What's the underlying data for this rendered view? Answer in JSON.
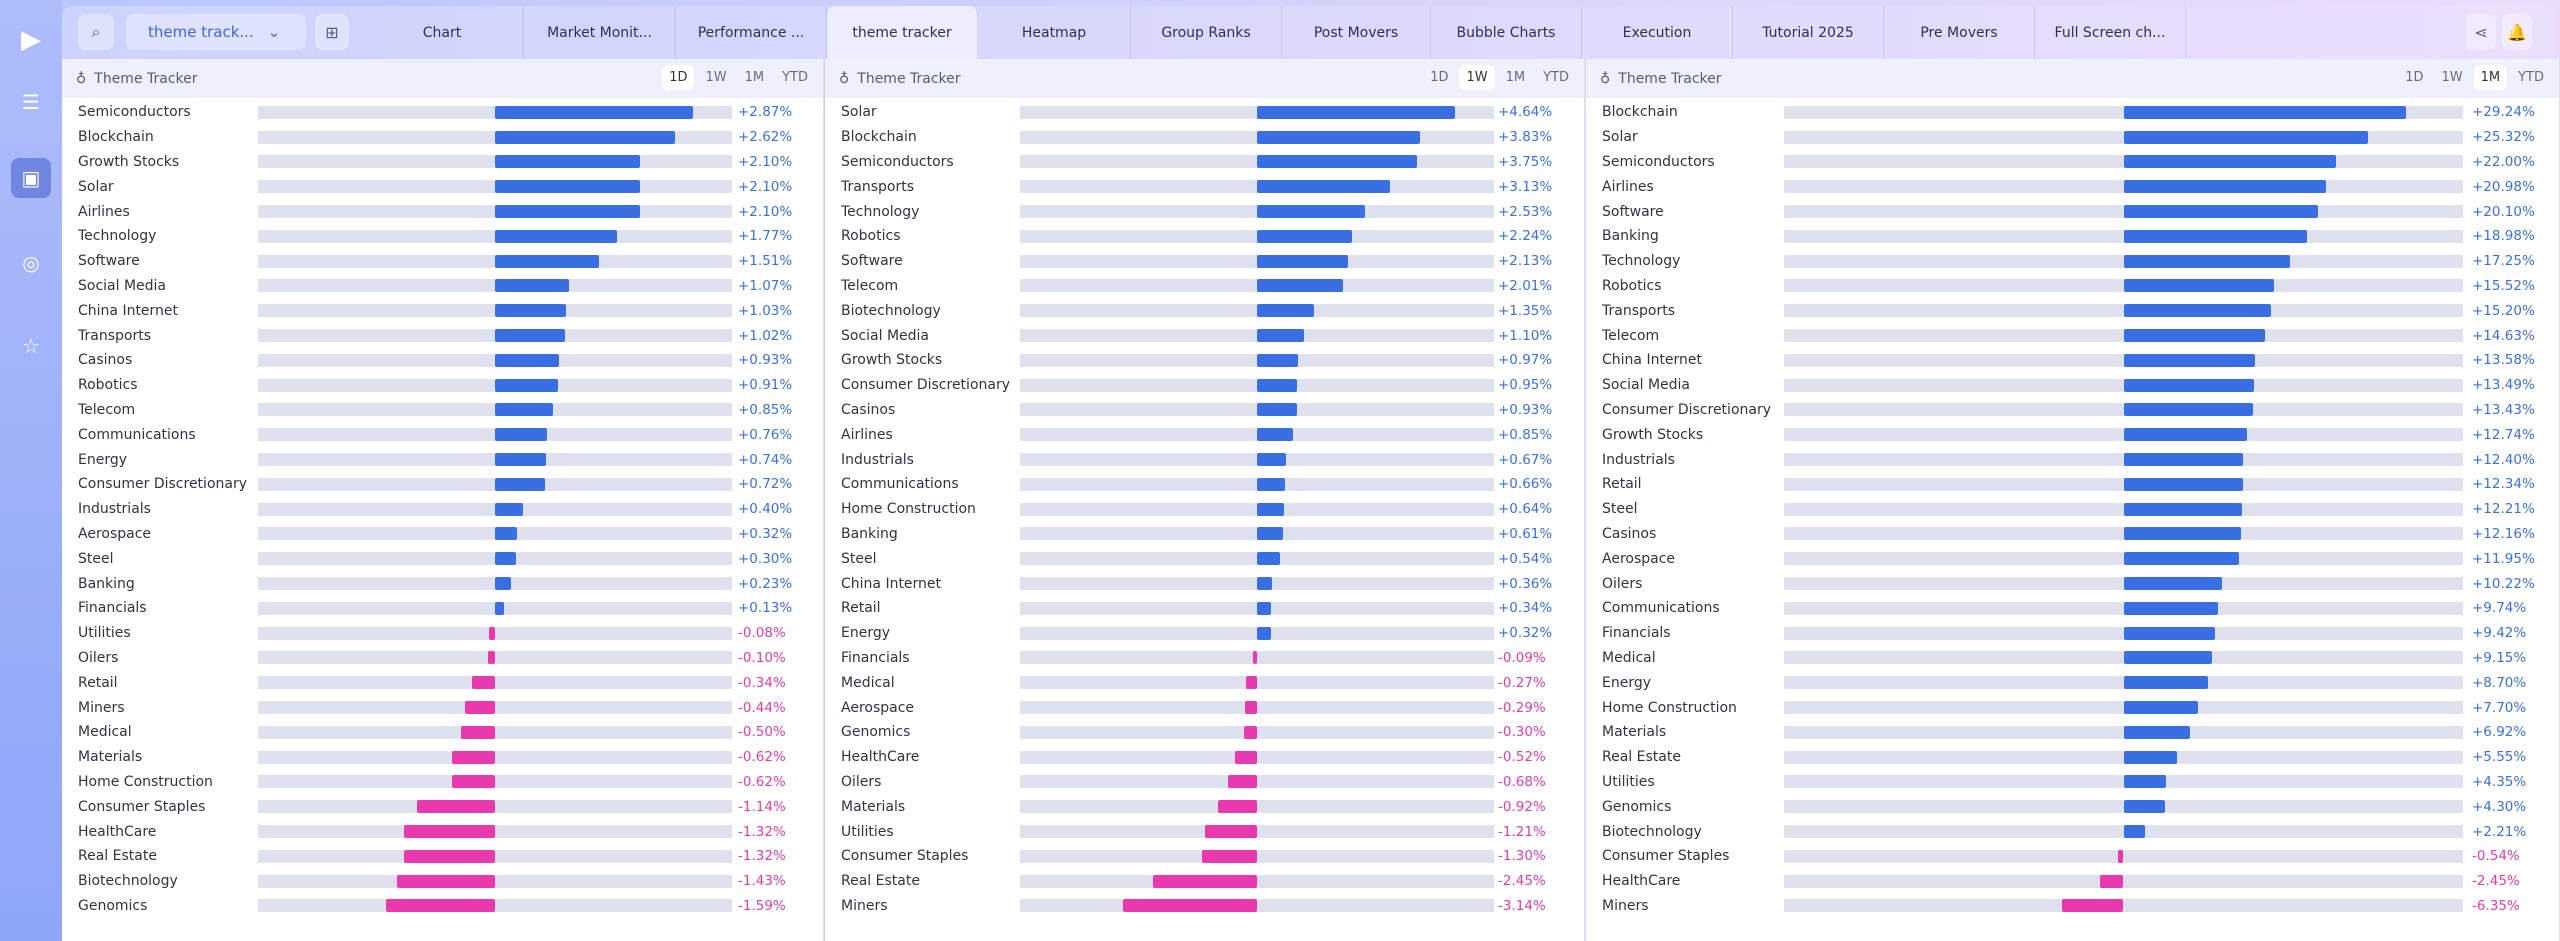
{
  "colors": {
    "positive": "#3a6fe3",
    "negative": "#e83aae",
    "track": "#e0e1ee"
  },
  "topbar": {
    "dropdown": "theme track...",
    "tabs": [
      "Chart",
      "Market Monit...",
      "Performance ...",
      "theme tracker",
      "Heatmap",
      "Group Ranks",
      "Post Movers",
      "Bubble Charts",
      "Execution",
      "Tutorial 2025",
      "Pre Movers",
      "Full Screen ch..."
    ],
    "active_tab": 3
  },
  "periods": [
    "1D",
    "1W",
    "1M",
    "YTD"
  ],
  "panels": [
    {
      "title": "Theme Tracker",
      "selected": "1D",
      "rows": [
        [
          "Semiconductors",
          2.87
        ],
        [
          "Blockchain",
          2.62
        ],
        [
          "Growth Stocks",
          2.1
        ],
        [
          "Solar",
          2.1
        ],
        [
          "Airlines",
          2.1
        ],
        [
          "Technology",
          1.77
        ],
        [
          "Software",
          1.51
        ],
        [
          "Social Media",
          1.07
        ],
        [
          "China Internet",
          1.03
        ],
        [
          "Transports",
          1.02
        ],
        [
          "Casinos",
          0.93
        ],
        [
          "Robotics",
          0.91
        ],
        [
          "Telecom",
          0.85
        ],
        [
          "Communications",
          0.76
        ],
        [
          "Energy",
          0.74
        ],
        [
          "Consumer Discretionary",
          0.72
        ],
        [
          "Industrials",
          0.4
        ],
        [
          "Aerospace",
          0.32
        ],
        [
          "Steel",
          0.3
        ],
        [
          "Banking",
          0.23
        ],
        [
          "Financials",
          0.13
        ],
        [
          "Utilities",
          -0.08
        ],
        [
          "Oilers",
          -0.1
        ],
        [
          "Retail",
          -0.34
        ],
        [
          "Miners",
          -0.44
        ],
        [
          "Medical",
          -0.5
        ],
        [
          "Materials",
          -0.62
        ],
        [
          "Home Construction",
          -0.62
        ],
        [
          "Consumer Staples",
          -1.14
        ],
        [
          "HealthCare",
          -1.32
        ],
        [
          "Real Estate",
          -1.32
        ],
        [
          "Biotechnology",
          -1.43
        ],
        [
          "Genomics",
          -1.59
        ]
      ]
    },
    {
      "title": "Theme Tracker",
      "selected": "1W",
      "rows": [
        [
          "Solar",
          4.64
        ],
        [
          "Blockchain",
          3.83
        ],
        [
          "Semiconductors",
          3.75
        ],
        [
          "Transports",
          3.13
        ],
        [
          "Technology",
          2.53
        ],
        [
          "Robotics",
          2.24
        ],
        [
          "Software",
          2.13
        ],
        [
          "Telecom",
          2.01
        ],
        [
          "Biotechnology",
          1.35
        ],
        [
          "Social Media",
          1.1
        ],
        [
          "Growth Stocks",
          0.97
        ],
        [
          "Consumer Discretionary",
          0.95
        ],
        [
          "Casinos",
          0.93
        ],
        [
          "Airlines",
          0.85
        ],
        [
          "Industrials",
          0.67
        ],
        [
          "Communications",
          0.66
        ],
        [
          "Home Construction",
          0.64
        ],
        [
          "Banking",
          0.61
        ],
        [
          "Steel",
          0.54
        ],
        [
          "China Internet",
          0.36
        ],
        [
          "Retail",
          0.34
        ],
        [
          "Energy",
          0.32
        ],
        [
          "Financials",
          -0.09
        ],
        [
          "Medical",
          -0.27
        ],
        [
          "Aerospace",
          -0.29
        ],
        [
          "Genomics",
          -0.3
        ],
        [
          "HealthCare",
          -0.52
        ],
        [
          "Oilers",
          -0.68
        ],
        [
          "Materials",
          -0.92
        ],
        [
          "Utilities",
          -1.21
        ],
        [
          "Consumer Staples",
          -1.3
        ],
        [
          "Real Estate",
          -2.45
        ],
        [
          "Miners",
          -3.14
        ]
      ]
    },
    {
      "title": "Theme Tracker",
      "selected": "1M",
      "rows": [
        [
          "Blockchain",
          29.24
        ],
        [
          "Solar",
          25.32
        ],
        [
          "Semiconductors",
          22.0
        ],
        [
          "Airlines",
          20.98
        ],
        [
          "Software",
          20.1
        ],
        [
          "Banking",
          18.98
        ],
        [
          "Technology",
          17.25
        ],
        [
          "Robotics",
          15.52
        ],
        [
          "Transports",
          15.2
        ],
        [
          "Telecom",
          14.63
        ],
        [
          "China Internet",
          13.58
        ],
        [
          "Social Media",
          13.49
        ],
        [
          "Consumer Discretionary",
          13.43
        ],
        [
          "Growth Stocks",
          12.74
        ],
        [
          "Industrials",
          12.4
        ],
        [
          "Retail",
          12.34
        ],
        [
          "Steel",
          12.21
        ],
        [
          "Casinos",
          12.16
        ],
        [
          "Aerospace",
          11.95
        ],
        [
          "Oilers",
          10.22
        ],
        [
          "Communications",
          9.74
        ],
        [
          "Financials",
          9.42
        ],
        [
          "Medical",
          9.15
        ],
        [
          "Energy",
          8.7
        ],
        [
          "Home Construction",
          7.7
        ],
        [
          "Materials",
          6.92
        ],
        [
          "Real Estate",
          5.55
        ],
        [
          "Utilities",
          4.35
        ],
        [
          "Genomics",
          4.3
        ],
        [
          "Biotechnology",
          2.21
        ],
        [
          "Consumer Staples",
          -0.54
        ],
        [
          "HealthCare",
          -2.45
        ],
        [
          "Miners",
          -6.35
        ]
      ]
    }
  ]
}
